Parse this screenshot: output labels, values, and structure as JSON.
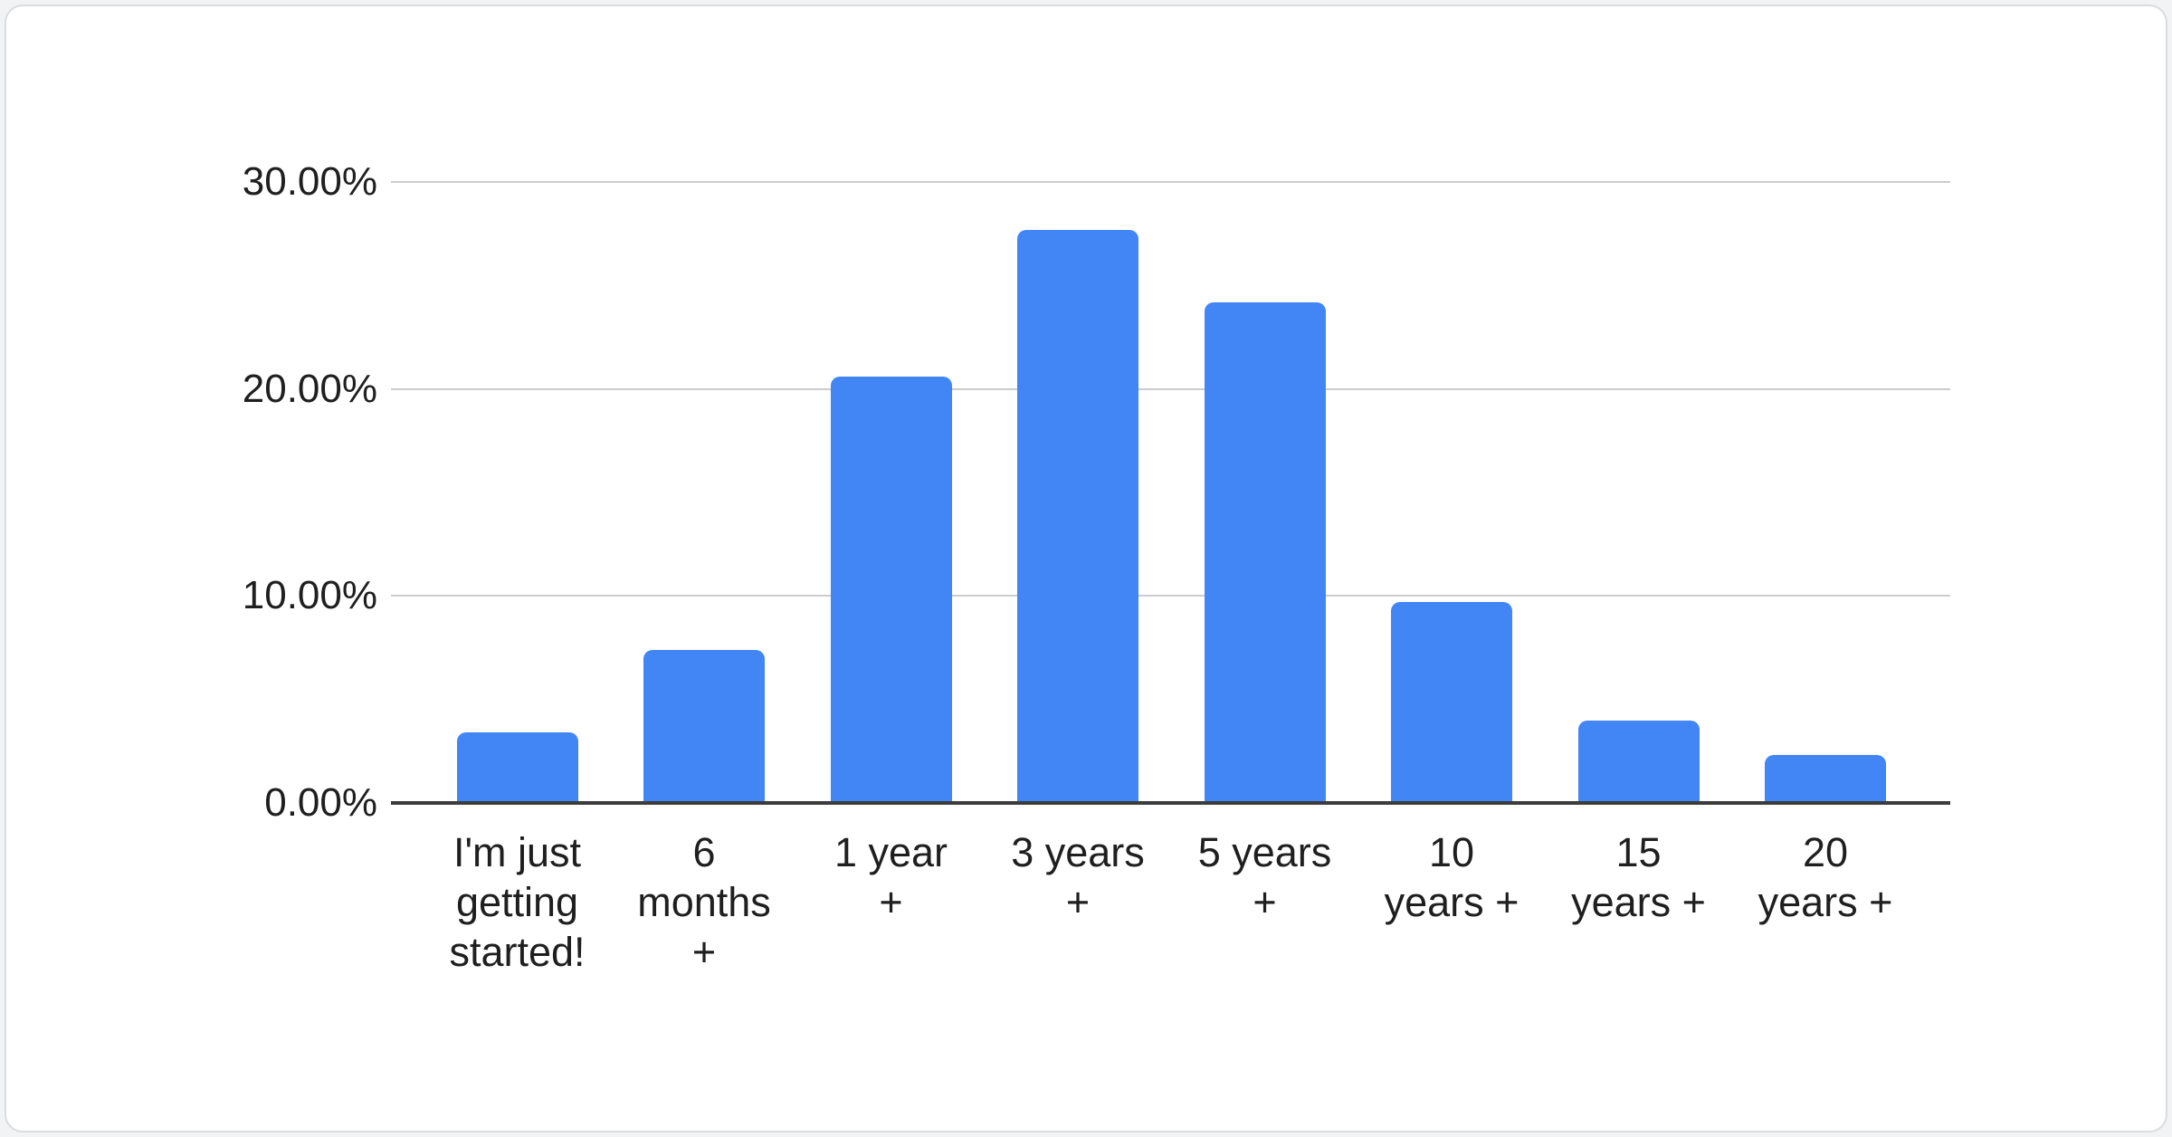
{
  "chart_data": {
    "type": "bar",
    "title": "",
    "xlabel": "",
    "ylabel": "",
    "categories": [
      "I'm just\ngetting\nstarted!",
      "6\nmonths\n+",
      "1 year\n+",
      "3 years\n+",
      "5 years\n+",
      "10\nyears +",
      "15\nyears +",
      "20\nyears +"
    ],
    "values": [
      3.4,
      7.4,
      20.6,
      27.7,
      24.2,
      9.7,
      4.0,
      2.3
    ],
    "unit": "%",
    "y_ticks": [
      {
        "label": "0.00%",
        "value": 0
      },
      {
        "label": "10.00%",
        "value": 10
      },
      {
        "label": "20.00%",
        "value": 20
      },
      {
        "label": "30.00%",
        "value": 30
      }
    ],
    "ylim": [
      0,
      30
    ],
    "grid": true,
    "legend_position": "none",
    "bar_color": "#4285F4",
    "gridline_color": "#cccccc",
    "axis_line_color": "#3c3c3c",
    "label_color": "#1f1f1f"
  }
}
